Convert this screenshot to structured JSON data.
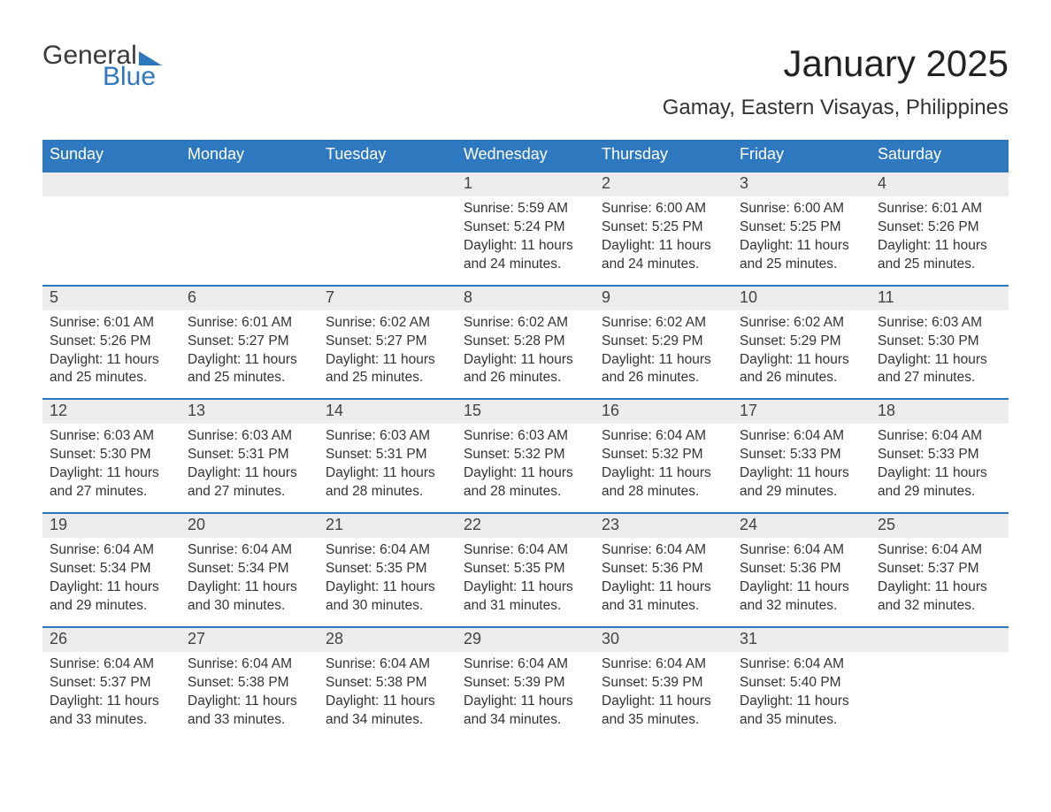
{
  "logo": {
    "text1": "General",
    "text2": "Blue"
  },
  "title": "January 2025",
  "location": "Gamay, Eastern Visayas, Philippines",
  "colors": {
    "header_bg": "#2d78bf",
    "header_text": "#ffffff",
    "daynum_bg": "#ececec",
    "week_border": "#2d78bf",
    "body_text": "#333333",
    "page_bg": "#ffffff"
  },
  "typography": {
    "title_fontsize": 42,
    "location_fontsize": 24,
    "dayheader_fontsize": 18,
    "body_fontsize": 15.5
  },
  "day_headers": [
    "Sunday",
    "Monday",
    "Tuesday",
    "Wednesday",
    "Thursday",
    "Friday",
    "Saturday"
  ],
  "labels": {
    "sunrise": "Sunrise:",
    "sunset": "Sunset:",
    "daylight": "Daylight:"
  },
  "weeks": [
    [
      {
        "empty": true
      },
      {
        "empty": true
      },
      {
        "empty": true
      },
      {
        "day": "1",
        "sunrise": "5:59 AM",
        "sunset": "5:24 PM",
        "daylight": "11 hours and 24 minutes."
      },
      {
        "day": "2",
        "sunrise": "6:00 AM",
        "sunset": "5:25 PM",
        "daylight": "11 hours and 24 minutes."
      },
      {
        "day": "3",
        "sunrise": "6:00 AM",
        "sunset": "5:25 PM",
        "daylight": "11 hours and 25 minutes."
      },
      {
        "day": "4",
        "sunrise": "6:01 AM",
        "sunset": "5:26 PM",
        "daylight": "11 hours and 25 minutes."
      }
    ],
    [
      {
        "day": "5",
        "sunrise": "6:01 AM",
        "sunset": "5:26 PM",
        "daylight": "11 hours and 25 minutes."
      },
      {
        "day": "6",
        "sunrise": "6:01 AM",
        "sunset": "5:27 PM",
        "daylight": "11 hours and 25 minutes."
      },
      {
        "day": "7",
        "sunrise": "6:02 AM",
        "sunset": "5:27 PM",
        "daylight": "11 hours and 25 minutes."
      },
      {
        "day": "8",
        "sunrise": "6:02 AM",
        "sunset": "5:28 PM",
        "daylight": "11 hours and 26 minutes."
      },
      {
        "day": "9",
        "sunrise": "6:02 AM",
        "sunset": "5:29 PM",
        "daylight": "11 hours and 26 minutes."
      },
      {
        "day": "10",
        "sunrise": "6:02 AM",
        "sunset": "5:29 PM",
        "daylight": "11 hours and 26 minutes."
      },
      {
        "day": "11",
        "sunrise": "6:03 AM",
        "sunset": "5:30 PM",
        "daylight": "11 hours and 27 minutes."
      }
    ],
    [
      {
        "day": "12",
        "sunrise": "6:03 AM",
        "sunset": "5:30 PM",
        "daylight": "11 hours and 27 minutes."
      },
      {
        "day": "13",
        "sunrise": "6:03 AM",
        "sunset": "5:31 PM",
        "daylight": "11 hours and 27 minutes."
      },
      {
        "day": "14",
        "sunrise": "6:03 AM",
        "sunset": "5:31 PM",
        "daylight": "11 hours and 28 minutes."
      },
      {
        "day": "15",
        "sunrise": "6:03 AM",
        "sunset": "5:32 PM",
        "daylight": "11 hours and 28 minutes."
      },
      {
        "day": "16",
        "sunrise": "6:04 AM",
        "sunset": "5:32 PM",
        "daylight": "11 hours and 28 minutes."
      },
      {
        "day": "17",
        "sunrise": "6:04 AM",
        "sunset": "5:33 PM",
        "daylight": "11 hours and 29 minutes."
      },
      {
        "day": "18",
        "sunrise": "6:04 AM",
        "sunset": "5:33 PM",
        "daylight": "11 hours and 29 minutes."
      }
    ],
    [
      {
        "day": "19",
        "sunrise": "6:04 AM",
        "sunset": "5:34 PM",
        "daylight": "11 hours and 29 minutes."
      },
      {
        "day": "20",
        "sunrise": "6:04 AM",
        "sunset": "5:34 PM",
        "daylight": "11 hours and 30 minutes."
      },
      {
        "day": "21",
        "sunrise": "6:04 AM",
        "sunset": "5:35 PM",
        "daylight": "11 hours and 30 minutes."
      },
      {
        "day": "22",
        "sunrise": "6:04 AM",
        "sunset": "5:35 PM",
        "daylight": "11 hours and 31 minutes."
      },
      {
        "day": "23",
        "sunrise": "6:04 AM",
        "sunset": "5:36 PM",
        "daylight": "11 hours and 31 minutes."
      },
      {
        "day": "24",
        "sunrise": "6:04 AM",
        "sunset": "5:36 PM",
        "daylight": "11 hours and 32 minutes."
      },
      {
        "day": "25",
        "sunrise": "6:04 AM",
        "sunset": "5:37 PM",
        "daylight": "11 hours and 32 minutes."
      }
    ],
    [
      {
        "day": "26",
        "sunrise": "6:04 AM",
        "sunset": "5:37 PM",
        "daylight": "11 hours and 33 minutes."
      },
      {
        "day": "27",
        "sunrise": "6:04 AM",
        "sunset": "5:38 PM",
        "daylight": "11 hours and 33 minutes."
      },
      {
        "day": "28",
        "sunrise": "6:04 AM",
        "sunset": "5:38 PM",
        "daylight": "11 hours and 34 minutes."
      },
      {
        "day": "29",
        "sunrise": "6:04 AM",
        "sunset": "5:39 PM",
        "daylight": "11 hours and 34 minutes."
      },
      {
        "day": "30",
        "sunrise": "6:04 AM",
        "sunset": "5:39 PM",
        "daylight": "11 hours and 35 minutes."
      },
      {
        "day": "31",
        "sunrise": "6:04 AM",
        "sunset": "5:40 PM",
        "daylight": "11 hours and 35 minutes."
      },
      {
        "empty": true
      }
    ]
  ]
}
